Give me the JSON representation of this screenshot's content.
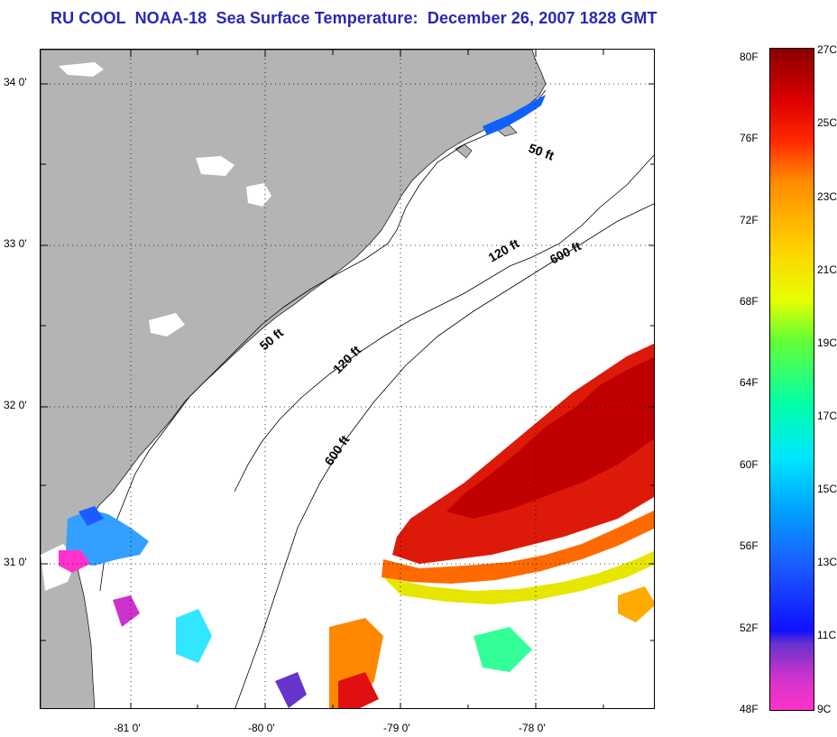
{
  "title": "RU COOL  NOAA-18  Sea Surface Temperature:  December 26, 2007 1828 GMT",
  "map": {
    "latitude_labels": [
      "34 0'",
      "33 0'",
      "32 0'",
      "31 0'"
    ],
    "longitude_labels": [
      "-81 0'",
      "-80 0'",
      "-79 0'",
      "-78 0'"
    ],
    "contour_labels": [
      "50 ft",
      "120 ft",
      "600 ft",
      "50 ft",
      "120 ft",
      "600 ft"
    ],
    "land_color": "#b4b4b4",
    "cloud_color": "#ffffff"
  },
  "colorbar": {
    "fahrenheit_labels": [
      "80F",
      "76F",
      "72F",
      "68F",
      "64F",
      "60F",
      "56F",
      "52F",
      "48F"
    ],
    "celsius_labels": [
      "27C",
      "25C",
      "23C",
      "21C",
      "19C",
      "17C",
      "15C",
      "13C",
      "11C",
      "9C"
    ]
  }
}
